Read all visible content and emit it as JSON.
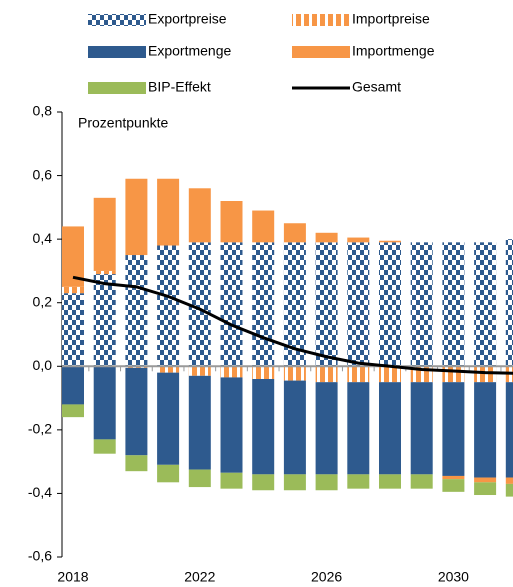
{
  "chart_data": {
    "type": "bar",
    "stacked": true,
    "y_axis_label": "Prozentpunkte",
    "categories": [
      "2018",
      null,
      null,
      null,
      "2022",
      null,
      null,
      null,
      "2026",
      null,
      null,
      null,
      "2030",
      null,
      null
    ],
    "ylim": [
      -0.6,
      0.8
    ],
    "yticks": [
      {
        "value": -0.6,
        "label": "-0,6"
      },
      {
        "value": -0.4,
        "label": "-0,4"
      },
      {
        "value": -0.2,
        "label": "-0,2"
      },
      {
        "value": 0,
        "label": "0,0"
      },
      {
        "value": 0.2,
        "label": "0,2"
      },
      {
        "value": 0.4,
        "label": "0,4"
      },
      {
        "value": 0.6,
        "label": "0,6"
      },
      {
        "value": 0.8,
        "label": "0,8"
      }
    ],
    "series": [
      {
        "name": "Exportpreise",
        "color": "#2e5a8e",
        "pattern": "checker",
        "values": [
          0.23,
          0.29,
          0.35,
          0.38,
          0.39,
          0.39,
          0.39,
          0.39,
          0.39,
          0.39,
          0.39,
          0.39,
          0.39,
          0.39,
          0.4
        ]
      },
      {
        "name": "Importpreise",
        "color": "#f79646",
        "pattern": "dash",
        "values": [
          0.02,
          0.01,
          -0.005,
          -0.02,
          -0.03,
          -0.035,
          -0.04,
          -0.045,
          -0.05,
          -0.05,
          -0.05,
          -0.05,
          -0.05,
          -0.05,
          -0.05
        ]
      },
      {
        "name": "Exportmenge",
        "color": "#2e5a8e",
        "values": [
          -0.12,
          -0.23,
          -0.275,
          -0.29,
          -0.295,
          -0.3,
          -0.3,
          -0.295,
          -0.29,
          -0.29,
          -0.29,
          -0.29,
          -0.295,
          -0.3,
          -0.3
        ]
      },
      {
        "name": "Importmenge",
        "color": "#f79646",
        "values": [
          0.19,
          0.23,
          0.24,
          0.21,
          0.17,
          0.13,
          0.1,
          0.06,
          0.03,
          0.015,
          0.005,
          0,
          -0.01,
          -0.015,
          -0.02
        ]
      },
      {
        "name": "BIP-Effekt",
        "color": "#9bbb59",
        "values": [
          -0.04,
          -0.045,
          -0.05,
          -0.055,
          -0.055,
          -0.05,
          -0.05,
          -0.05,
          -0.05,
          -0.045,
          -0.045,
          -0.045,
          -0.04,
          -0.04,
          -0.04
        ]
      },
      {
        "name": "Gesamt",
        "color": "#000000",
        "type": "line",
        "values": [
          0.28,
          0.26,
          0.25,
          0.22,
          0.18,
          0.13,
          0.09,
          0.055,
          0.03,
          0.01,
          0,
          -0.01,
          -0.015,
          -0.02,
          -0.022
        ]
      }
    ]
  }
}
